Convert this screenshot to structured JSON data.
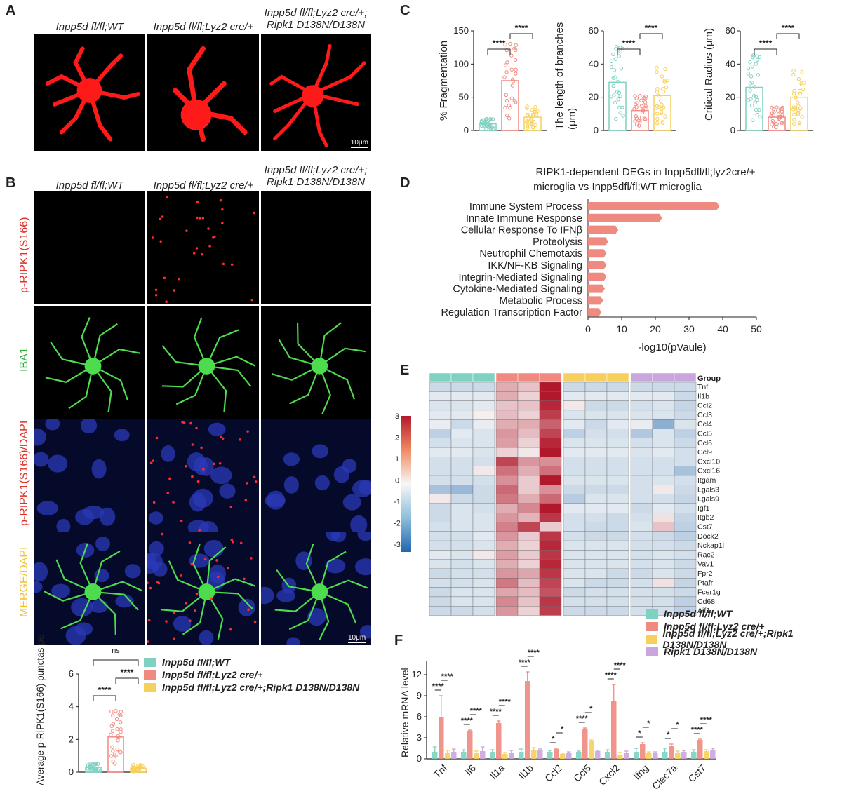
{
  "panels": {
    "A": {
      "letter": "A",
      "columns": [
        "Inpp5d fl/fl;WT",
        "Inpp5d fl/fl;Lyz2 cre/+",
        "Inpp5d fl/fl;Lyz2 cre/+; Ripk1 D138N/D138N"
      ],
      "scale": "10μm"
    },
    "B": {
      "letter": "B",
      "columns": [
        "Inpp5d fl/fl;WT",
        "Inpp5d fl/fl;Lyz2 cre/+",
        "Inpp5d fl/fl;Lyz2 cre/+; Ripk1 D138N/D138N"
      ],
      "rows": [
        "p-RIPK1(S166)",
        "IBA1",
        "p-RIPK1(S166)/DAPI",
        "MERGE/DAPI"
      ],
      "scale": "10μm",
      "quant_ylabel": "Average p-RIPK1(S166) punctas per cell",
      "ns": "ns",
      "sig": "****"
    },
    "C": {
      "letter": "C"
    },
    "D": {
      "letter": "D",
      "title1": "RIPK1-dependent DEGs in Inpp5dfl/fl;lyz2cre/+",
      "title2": "microglia vs Inpp5dfl/fl;WT microglia"
    },
    "E": {
      "letter": "E",
      "group_label": "Group"
    },
    "F": {
      "letter": "F"
    }
  },
  "legend_groups": [
    "Inpp5d fl/fl;WT",
    "Inpp5d fl/fl;Lyz2 cre/+",
    "Inpp5d fl/fl;Lyz2 cre/+;Ripk1 D138N/D138N",
    "Ripk1 D138N/D138N"
  ],
  "colors": {
    "wt": "#7fd1c1",
    "cre": "#f08a80",
    "ripk": "#f7cf5c",
    "ripkonly": "#c9a6dc"
  },
  "chart_data": [
    {
      "type": "bar",
      "panel": "B",
      "categories": [
        "Inpp5d fl/fl;WT",
        "Inpp5d fl/fl;Lyz2 cre/+",
        "Inpp5d fl/fl;Lyz2 cre/+;Ripk1 D138N/D138N"
      ],
      "values": [
        0.3,
        2.15,
        0.25
      ],
      "ylabel": "Average p-RIPK1(S166) punctas per cell",
      "ylim": [
        0,
        6
      ],
      "yticks": [
        0,
        2,
        4,
        6
      ]
    },
    {
      "type": "bar",
      "panel": "C",
      "ylabel": "% Fragmentation",
      "values": [
        10,
        75,
        20
      ],
      "ylim": [
        0,
        150
      ],
      "yticks": [
        0,
        50,
        100,
        150
      ],
      "sig": [
        "****",
        "****"
      ]
    },
    {
      "type": "bar",
      "panel": "C",
      "ylabel": "The length of branches (μm)",
      "values": [
        29,
        12,
        21
      ],
      "ylim": [
        0,
        60
      ],
      "yticks": [
        0,
        20,
        40,
        60
      ],
      "sig": [
        "****",
        "****"
      ]
    },
    {
      "type": "bar",
      "panel": "C",
      "ylabel": "Critical Radius (μm)",
      "values": [
        26,
        8,
        20
      ],
      "ylim": [
        0,
        60
      ],
      "yticks": [
        0,
        20,
        40,
        60
      ],
      "sig": [
        "****",
        "****"
      ]
    },
    {
      "type": "bar",
      "panel": "D",
      "orientation": "horizontal",
      "categories": [
        "Immune System Process",
        "Innate Immune Response",
        "Cellular Response To IFNβ",
        "Proteolysis",
        "Neutrophil Chemotaxis",
        "IKK/NF-KB Signaling",
        "Integrin-Mediated Signaling",
        "Cytokine-Mediated Signaling",
        "Metabolic Process",
        "Regulation Transcription Factor"
      ],
      "values": [
        39,
        22,
        9,
        6,
        5.5,
        5.5,
        5.5,
        5,
        4.5,
        4
      ],
      "xlabel": "-log10(pVaule)",
      "xlim": [
        0,
        50
      ],
      "xticks": [
        0,
        10,
        20,
        30,
        40,
        50
      ]
    },
    {
      "type": "heatmap",
      "panel": "E",
      "rows": [
        "Tnf",
        "Il1b",
        "Ccl2",
        "Ccl3",
        "Ccl4",
        "Ccl5",
        "Ccl6",
        "Ccl9",
        "Cxcl10",
        "Cxcl16",
        "Itgam",
        "Lgals3",
        "Lgals9",
        "Igf1",
        "Itgb2",
        "Cst7",
        "Dock2",
        "Nckap1l",
        "Rac2",
        "Vav1",
        "Fpr2",
        "Ptafr",
        "Fcer1g",
        "Cd68",
        "Aif1"
      ],
      "scale_ticks": [
        "3",
        "2",
        "1",
        "0",
        "-1",
        "-2",
        "-3"
      ],
      "vmin": -3,
      "vmax": 3,
      "values": [
        [
          -0.6,
          -0.6,
          -0.6,
          1.0,
          0.7,
          3.0,
          -0.6,
          -0.6,
          -0.6,
          -0.6,
          -0.6,
          -0.6
        ],
        [
          -0.3,
          -0.3,
          -0.3,
          1.0,
          0.5,
          3.0,
          -0.3,
          -0.3,
          -0.3,
          -0.3,
          -0.3,
          -0.6
        ],
        [
          -0.4,
          -0.4,
          -0.3,
          0.7,
          0.7,
          2.8,
          0.2,
          -0.6,
          -0.6,
          -0.5,
          -0.4,
          -0.7
        ],
        [
          -0.3,
          -0.3,
          0.1,
          0.8,
          0.5,
          2.5,
          -0.4,
          -0.4,
          -0.4,
          -0.4,
          -0.4,
          -0.6
        ],
        [
          -0.2,
          -0.6,
          -0.2,
          1.0,
          1.0,
          2.0,
          -0.3,
          -0.6,
          -0.3,
          -0.2,
          -1.5,
          -0.4
        ],
        [
          -0.8,
          -0.3,
          -0.4,
          1.3,
          0.8,
          2.4,
          -0.8,
          -0.5,
          -0.5,
          -1.0,
          -0.4,
          -0.8
        ],
        [
          -0.5,
          -0.4,
          -0.4,
          1.2,
          0.5,
          2.8,
          -0.4,
          -0.4,
          -0.4,
          -0.5,
          -0.4,
          -0.6
        ],
        [
          -0.3,
          -0.3,
          -0.4,
          0.5,
          0.2,
          3.0,
          -0.3,
          -0.3,
          -0.3,
          -0.4,
          -0.3,
          -0.5
        ],
        [
          -0.5,
          -0.5,
          -0.5,
          2.4,
          1.3,
          1.4,
          -0.5,
          -0.5,
          -0.5,
          -0.5,
          -0.5,
          -0.5
        ],
        [
          -0.5,
          -0.5,
          0.2,
          1.8,
          1.0,
          1.8,
          -0.5,
          -0.5,
          -0.5,
          -0.5,
          -0.5,
          -1.1
        ],
        [
          -0.5,
          -0.5,
          -0.5,
          1.4,
          0.6,
          3.0,
          -0.4,
          -0.4,
          -0.4,
          -0.5,
          -0.4,
          -0.5
        ],
        [
          -1.1,
          -1.3,
          -0.6,
          1.9,
          0.6,
          1.4,
          -0.6,
          -0.6,
          -0.6,
          -0.5,
          0.2,
          -0.6
        ],
        [
          0.2,
          -0.6,
          -0.6,
          1.7,
          1.0,
          1.9,
          -0.9,
          -0.4,
          -0.4,
          -0.5,
          -0.5,
          -0.7
        ],
        [
          -0.6,
          -0.4,
          -0.5,
          1.0,
          1.5,
          3.0,
          -0.3,
          -0.3,
          -0.3,
          -0.6,
          -0.3,
          -0.5
        ],
        [
          -0.6,
          -0.4,
          -0.4,
          1.3,
          0.9,
          2.6,
          -0.5,
          -0.5,
          -0.6,
          -0.5,
          0.3,
          -0.7
        ],
        [
          -0.5,
          -0.4,
          -0.4,
          1.6,
          2.4,
          0.6,
          -0.5,
          -0.6,
          -0.6,
          -0.4,
          0.7,
          -0.8
        ],
        [
          -0.5,
          -0.5,
          -0.3,
          1.3,
          0.6,
          2.6,
          -0.5,
          -0.6,
          -0.6,
          -0.5,
          -0.6,
          -0.8
        ],
        [
          -0.5,
          -0.5,
          -0.4,
          1.0,
          0.5,
          2.8,
          -0.4,
          -0.4,
          -0.4,
          -0.5,
          -0.5,
          -0.6
        ],
        [
          -0.3,
          -0.4,
          0.2,
          1.2,
          0.6,
          2.6,
          -0.4,
          -0.4,
          -0.4,
          -0.5,
          -0.4,
          -0.5
        ],
        [
          -0.4,
          -0.5,
          -0.4,
          1.0,
          0.5,
          2.8,
          -0.4,
          -0.4,
          -0.4,
          -0.5,
          -0.4,
          -0.6
        ],
        [
          -0.6,
          -0.5,
          -0.5,
          1.3,
          1.1,
          2.6,
          -0.4,
          -0.4,
          -0.6,
          -0.6,
          -0.4,
          -0.6
        ],
        [
          -0.5,
          -0.5,
          -0.4,
          1.7,
          0.8,
          2.4,
          -0.4,
          -0.6,
          -0.6,
          -0.5,
          0.3,
          -0.7
        ],
        [
          -0.6,
          -0.4,
          -0.4,
          1.1,
          0.8,
          2.2,
          -0.6,
          -0.5,
          -0.5,
          -0.5,
          -0.5,
          -0.6
        ],
        [
          -0.6,
          -0.4,
          -0.4,
          1.5,
          0.7,
          2.6,
          -0.5,
          -0.5,
          -0.5,
          -0.5,
          -0.5,
          -0.8
        ],
        [
          -0.6,
          -0.6,
          -0.5,
          1.3,
          0.5,
          2.5,
          -0.6,
          -0.6,
          -0.6,
          -0.5,
          -0.5,
          -0.8
        ]
      ]
    },
    {
      "type": "bar",
      "panel": "F",
      "ylabel": "Relative mRNA  level",
      "ylim": [
        0,
        15
      ],
      "yticks": [
        0,
        3,
        6,
        9,
        12
      ],
      "categories": [
        "Tnf",
        "Il6",
        "Il1a",
        "Il1b",
        "Ccl2",
        "Ccl5",
        "Cxcl2",
        "Ifng",
        "Clec7a",
        "Cst7"
      ],
      "series": [
        {
          "name": "Inpp5d fl/fl;WT",
          "values": [
            1.0,
            1.0,
            1.0,
            1.0,
            1.0,
            1.0,
            1.0,
            1.0,
            1.0,
            1.0
          ],
          "errors": [
            0.7,
            0.3,
            0.3,
            0.4,
            0.2,
            0.1,
            0.3,
            0.5,
            0.5,
            0.3
          ]
        },
        {
          "name": "Inpp5d fl/fl;Lyz2 cre/+",
          "values": [
            6.0,
            3.9,
            5.1,
            11.1,
            1.4,
            4.3,
            8.3,
            2.1,
            1.8,
            2.7
          ],
          "errors": [
            3.0,
            0.2,
            0.3,
            1.3,
            0.1,
            0.1,
            2.3,
            0.2,
            0.3,
            0.1
          ]
        },
        {
          "name": "Inpp5d fl/fl;Lyz2 cre/+;Ripk1 D138N/D138N",
          "values": [
            0.9,
            0.9,
            0.7,
            1.3,
            0.7,
            2.6,
            0.6,
            0.8,
            0.9,
            1.1
          ],
          "errors": [
            0.3,
            0.2,
            0.2,
            0.3,
            0.1,
            0.1,
            0.3,
            0.2,
            0.2,
            0.2
          ]
        },
        {
          "name": "Ripk1 D138N/D138N",
          "values": [
            1.0,
            1.1,
            0.9,
            1.2,
            0.9,
            1.1,
            0.9,
            0.8,
            1.0,
            1.2
          ],
          "errors": [
            0.4,
            0.6,
            0.3,
            0.2,
            0.1,
            0.1,
            0.2,
            0.2,
            0.2,
            0.3
          ]
        }
      ],
      "sig_pairs": [
        [
          "****",
          "****"
        ],
        [
          "****",
          "****"
        ],
        [
          "****",
          "****"
        ],
        [
          "****",
          "****"
        ],
        [
          "*",
          "*"
        ],
        [
          "****",
          "*"
        ],
        [
          "****",
          "****"
        ],
        [
          "*",
          "*"
        ],
        [
          "*",
          "*"
        ],
        [
          "****",
          "****"
        ]
      ]
    }
  ]
}
